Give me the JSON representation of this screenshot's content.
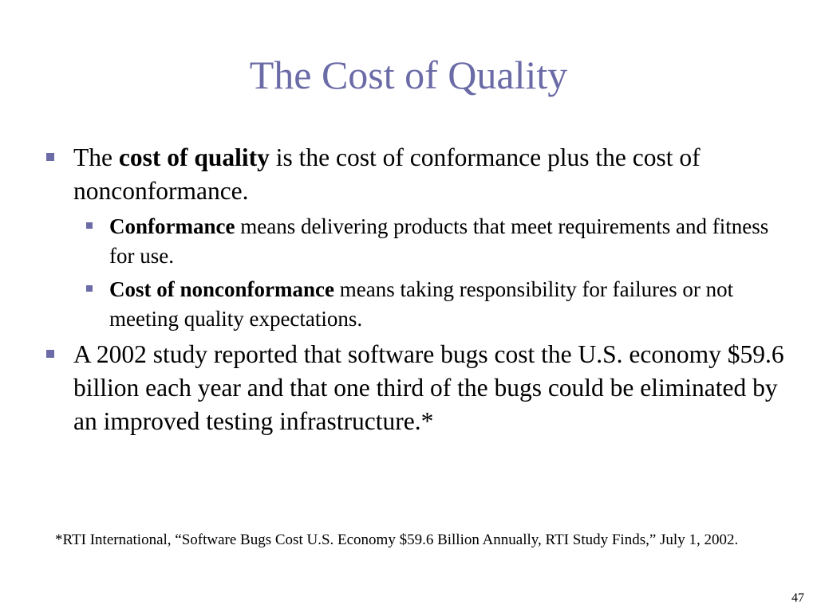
{
  "slide": {
    "title": "The Cost of Quality",
    "page_number": "47"
  },
  "bullets": [
    {
      "pre": "The ",
      "bold": "cost of quality",
      "post": " is the cost of conformance plus the cost of nonconformance.",
      "sub": [
        {
          "bold": "Conformance",
          "post": " means delivering products that meet requirements and fitness for use."
        },
        {
          "bold": "Cost of nonconformance",
          "post": " means taking responsibility for failures or not meeting quality expectations."
        }
      ]
    },
    {
      "text": "A 2002 study reported that software bugs cost the U.S. economy $59.6 billion each year and that one third of the bugs could be eliminated by an improved testing infrastructure.*"
    }
  ],
  "footnote": "*RTI International, “Software Bugs Cost U.S. Economy $59.6 Billion Annually, RTI Study Finds,” July 1, 2002.",
  "colors": {
    "title": "#6b6ba7",
    "bullet_marker": "#6b6ba7",
    "text": "#000000",
    "background": "#ffffff"
  }
}
